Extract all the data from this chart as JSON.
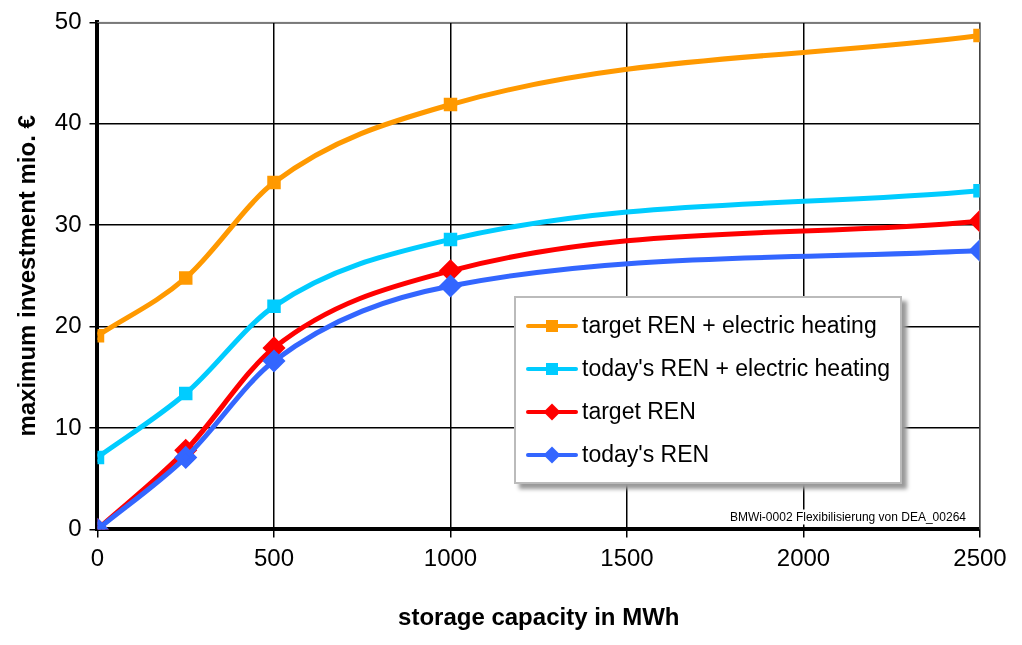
{
  "chart_data": {
    "type": "line",
    "xlabel": "storage capacity in MWh",
    "ylabel": "maximum investment mio. €",
    "x": [
      0,
      250,
      500,
      1000,
      2500
    ],
    "xlim": [
      0,
      2500
    ],
    "xticks": [
      0,
      500,
      1000,
      1500,
      2000,
      2500
    ],
    "ylim": [
      0,
      50
    ],
    "yticks": [
      0,
      10,
      20,
      30,
      40,
      50
    ],
    "grid": true,
    "legend": "bottom right",
    "series": [
      {
        "name": "target REN + electric heating",
        "color": "#ff9900",
        "marker": "square",
        "values": [
          19.1,
          24.8,
          34.2,
          41.9,
          48.7
        ]
      },
      {
        "name": "today's REN + electric heating",
        "color": "#00ccff",
        "marker": "square",
        "values": [
          7.1,
          13.4,
          22.0,
          28.6,
          33.4
        ]
      },
      {
        "name": "target REN",
        "color": "#ff0000",
        "marker": "diamond",
        "values": [
          0,
          7.8,
          17.9,
          25.5,
          30.4
        ]
      },
      {
        "name": "today's REN",
        "color": "#3366ff",
        "marker": "diamond",
        "values": [
          0,
          7.1,
          16.6,
          24.0,
          27.5
        ]
      }
    ],
    "annotations": [
      "BMWi-0002 Flexibilisierung von DEA_00264"
    ]
  }
}
